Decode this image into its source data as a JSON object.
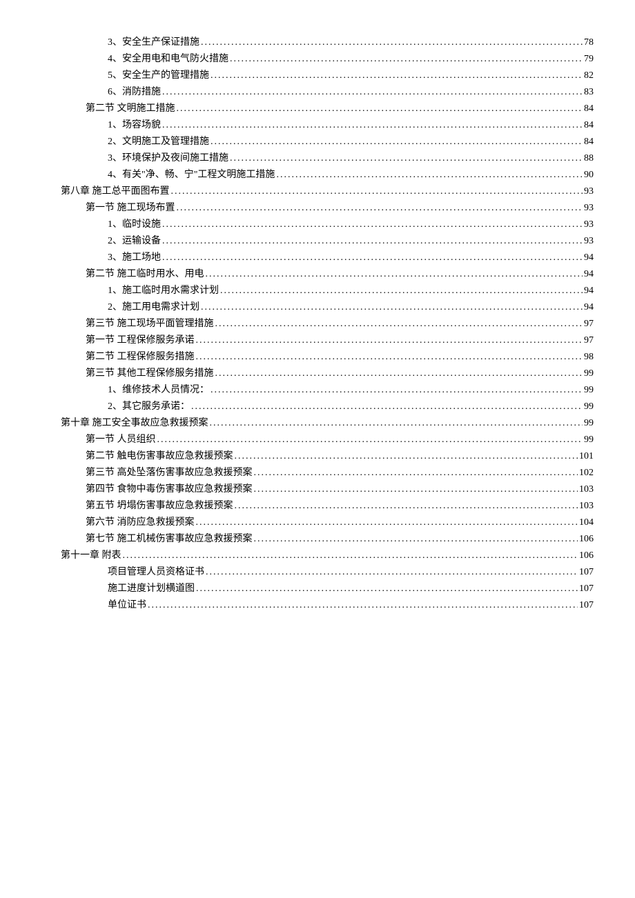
{
  "toc": {
    "font_size": 14,
    "line_height": 24,
    "text_color": "#000000",
    "background_color": "#ffffff",
    "entries": [
      {
        "indent": 2,
        "label": "3、安全生产保证措施",
        "page": "78"
      },
      {
        "indent": 2,
        "label": "4、安全用电和电气防火措施",
        "page": "79"
      },
      {
        "indent": 2,
        "label": "5、安全生产的管理措施",
        "page": "82"
      },
      {
        "indent": 2,
        "label": "6、消防措施",
        "page": "83"
      },
      {
        "indent": 1,
        "label": "第二节  文明施工措施",
        "page": "84"
      },
      {
        "indent": 2,
        "label": "1、场容场貌",
        "page": "84"
      },
      {
        "indent": 2,
        "label": "2、文明施工及管理措施",
        "page": "84"
      },
      {
        "indent": 2,
        "label": "3、环境保护及夜间施工措施",
        "page": "88"
      },
      {
        "indent": 2,
        "label": "4、有关\"净、畅、宁\"工程文明施工措施 ",
        "page": "90"
      },
      {
        "indent": 0,
        "label": "第八章  施工总平面图布置",
        "page": "93"
      },
      {
        "indent": 1,
        "label": "第一节  施工现场布置 ",
        "page": "93"
      },
      {
        "indent": 2,
        "label": "1、临时设施",
        "page": "93"
      },
      {
        "indent": 2,
        "label": "2、运输设备",
        "page": "93"
      },
      {
        "indent": 2,
        "label": "3、施工场地",
        "page": "94"
      },
      {
        "indent": 1,
        "label": "第二节  施工临时用水、用电",
        "page": "94"
      },
      {
        "indent": 2,
        "label": "1、施工临时用水需求计划",
        "page": "94"
      },
      {
        "indent": 2,
        "label": "2、施工用电需求计划",
        "page": "94"
      },
      {
        "indent": 1,
        "label": "第三节  施工现场平面管理措施",
        "page": "97"
      },
      {
        "indent": 1,
        "label": "第一节  工程保修服务承诺",
        "page": "97"
      },
      {
        "indent": 1,
        "label": "第二节  工程保修服务措施",
        "page": "98"
      },
      {
        "indent": 1,
        "label": "第三节  其他工程保修服务措施",
        "page": "99"
      },
      {
        "indent": 2,
        "label": "1、维修技术人员情况：",
        "page": "99"
      },
      {
        "indent": 2,
        "label": "2、其它服务承诺：",
        "page": "99"
      },
      {
        "indent": 0,
        "label": "第十章  施工安全事故应急救援预案",
        "page": "99"
      },
      {
        "indent": 1,
        "label": "第一节  人员组织",
        "page": "99"
      },
      {
        "indent": 1,
        "label": "第二节    触电伤害事故应急救援预案",
        "page": "101"
      },
      {
        "indent": 1,
        "label": "第三节    高处坠落伤害事故应急救援预案",
        "page": "102"
      },
      {
        "indent": 1,
        "label": "第四节    食物中毒伤害事故应急救援预案",
        "page": "103"
      },
      {
        "indent": 1,
        "label": "第五节    坍塌伤害事故应急救援预案",
        "page": "103"
      },
      {
        "indent": 1,
        "label": "第六节    消防应急救援预案",
        "page": "104"
      },
      {
        "indent": 1,
        "label": "第七节  施工机械伤害事故应急救援预案",
        "page": "106"
      },
      {
        "indent": 0,
        "label": "第十一章  附表",
        "page": "106"
      },
      {
        "indent": 2,
        "label": "项目管理人员资格证书",
        "page": "107"
      },
      {
        "indent": 2,
        "label": "施工进度计划横道图",
        "page": "107"
      },
      {
        "indent": 2,
        "label": "单位证书",
        "page": "107"
      }
    ]
  }
}
